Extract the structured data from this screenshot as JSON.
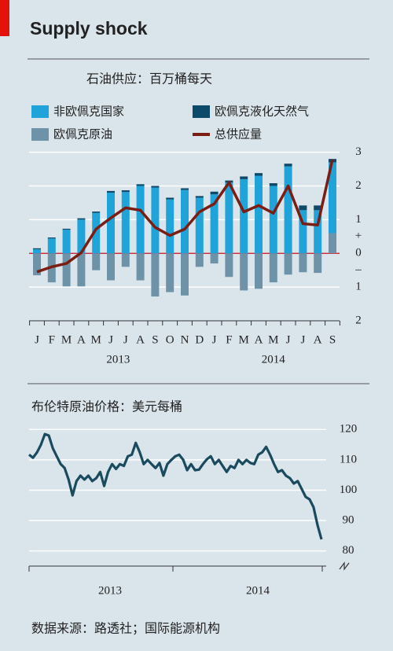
{
  "title": "Supply shock",
  "source": "数据来源：路透社；国际能源机构",
  "chart_data": [
    {
      "type": "bar",
      "subtitle": "石油供应：百万桶每天",
      "categories": [
        "J",
        "F",
        "M",
        "A",
        "M",
        "J",
        "J",
        "A",
        "S",
        "O",
        "N",
        "D",
        "J",
        "F",
        "M",
        "A",
        "M",
        "J",
        "J",
        "A",
        "S"
      ],
      "year_labels": [
        "2013",
        "2014"
      ],
      "series": [
        {
          "name": "非欧佩克国家",
          "color": "#1fa3d9",
          "values": [
            0.12,
            0.44,
            0.7,
            1.0,
            1.2,
            1.8,
            1.82,
            2.0,
            1.95,
            1.6,
            1.88,
            1.65,
            1.75,
            2.1,
            2.2,
            2.3,
            2.0,
            2.58,
            1.28,
            1.28,
            2.1
          ]
        },
        {
          "name": "欧佩克液化天然气",
          "color": "#0d4a6a",
          "values": [
            0.03,
            0.03,
            0.03,
            0.04,
            0.04,
            0.05,
            0.05,
            0.05,
            0.05,
            0.05,
            0.05,
            0.05,
            0.08,
            0.06,
            0.08,
            0.08,
            0.08,
            0.08,
            0.14,
            0.14,
            0.1
          ]
        },
        {
          "name": "欧佩克原油",
          "color": "#6e93a8",
          "values": [
            -0.65,
            -0.86,
            -0.98,
            -0.98,
            -0.5,
            -0.8,
            -0.4,
            -0.8,
            -1.28,
            -1.15,
            -1.25,
            -0.4,
            -0.3,
            -0.7,
            -1.1,
            -1.05,
            -0.86,
            -0.63,
            -0.56,
            -0.58,
            0.6
          ]
        },
        {
          "name": "总供应量",
          "type": "line",
          "color": "#7a1e13",
          "values": [
            -0.55,
            -0.4,
            -0.3,
            0.02,
            0.72,
            1.05,
            1.35,
            1.28,
            0.77,
            0.53,
            0.72,
            1.23,
            1.47,
            2.1,
            1.23,
            1.42,
            1.19,
            2.0,
            0.88,
            0.84,
            2.79
          ]
        }
      ],
      "ylim": [
        -2,
        3.2
      ],
      "yticks": [
        3,
        2,
        1,
        0,
        {
          "value": -1,
          "label": "1"
        },
        {
          "value": -2,
          "label": "2"
        }
      ],
      "sign_labels": [
        "+",
        "–"
      ],
      "grid": true,
      "zero_line_color": "#d0101a"
    },
    {
      "type": "line",
      "subtitle": "布伦特原油价格：美元每桶",
      "year_labels": [
        "2013",
        "2014"
      ],
      "color": "#1a4a5e",
      "values": [
        111.7,
        110.7,
        112.5,
        115,
        118.5,
        118,
        113.8,
        111.2,
        108.6,
        107.3,
        103.5,
        98.3,
        103,
        104.8,
        103.5,
        104.8,
        103,
        104,
        106,
        101.4,
        106,
        108.6,
        107,
        108.6,
        108,
        111.2,
        111.7,
        115.6,
        112.5,
        108.6,
        110,
        108.6,
        107.3,
        109,
        104.8,
        108.6,
        110,
        111.2,
        111.7,
        110,
        106.6,
        108.6,
        106.6,
        106.8,
        108.6,
        110.2,
        111.2,
        108.6,
        110,
        108,
        106,
        108,
        107.3,
        110,
        108.6,
        110,
        109,
        108.6,
        111.7,
        112.5,
        114.3,
        111.7,
        108.6,
        106,
        106.6,
        104.8,
        104,
        102.2,
        103,
        100.4,
        97.8,
        97,
        94.4,
        88.5,
        83.8
      ],
      "ylim": [
        75,
        125
      ],
      "yticks": [
        120,
        110,
        100,
        90,
        80
      ],
      "grid": true
    }
  ]
}
